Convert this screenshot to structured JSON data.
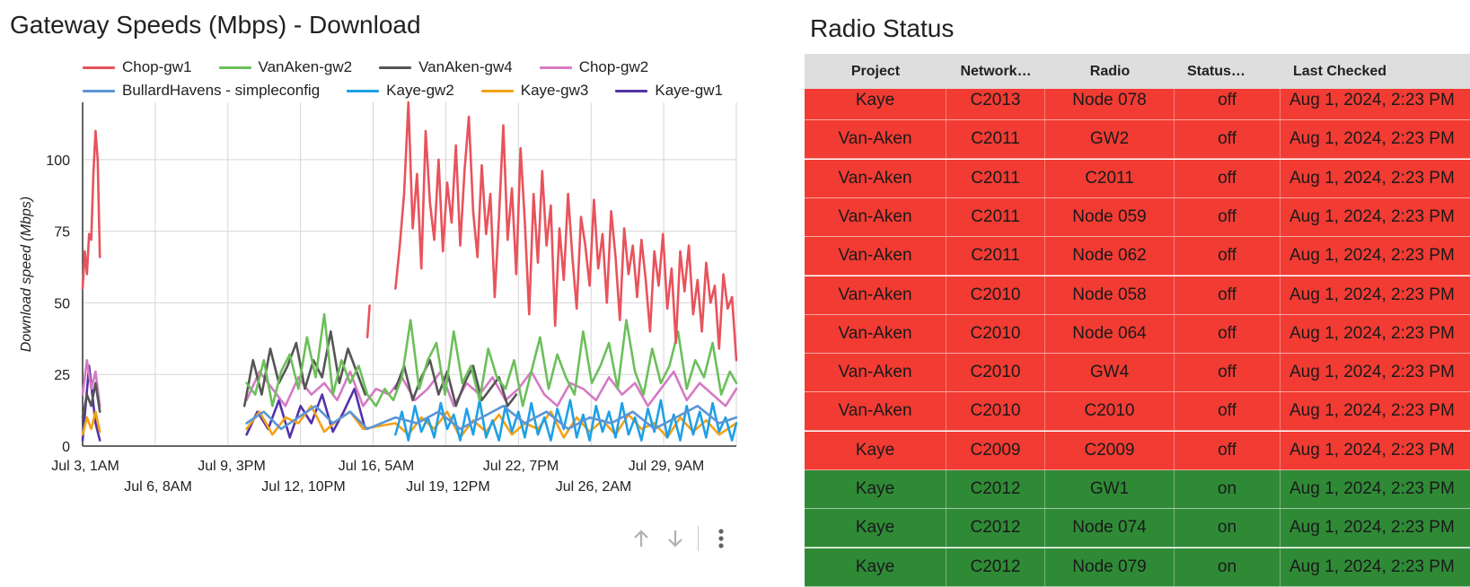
{
  "chart": {
    "title": "Gateway Speeds (Mbps) - Download",
    "legend": [
      {
        "name": "Chop-gw1",
        "color": "#e8535c"
      },
      {
        "name": "VanAken-gw2",
        "color": "#6cbf5a"
      },
      {
        "name": "VanAken-gw4",
        "color": "#555555"
      },
      {
        "name": "Chop-gw2",
        "color": "#d57ac5"
      },
      {
        "name": "BullardHavens - simpleconfig",
        "color": "#5b95d6"
      },
      {
        "name": "Kaye-gw2",
        "color": "#1ea0e6"
      },
      {
        "name": "Kaye-gw3",
        "color": "#f4a116"
      },
      {
        "name": "Kaye-gw1",
        "color": "#5432a8"
      }
    ],
    "controls": {
      "up_icon": "arrow-up-icon",
      "down_icon": "arrow-down-icon",
      "more_icon": "more-vert-icon"
    }
  },
  "chart_data": {
    "type": "line",
    "title": "Gateway Speeds (Mbps) - Download",
    "xlabel": "",
    "ylabel": "Download speed (Mbps)",
    "ylim": [
      0,
      120
    ],
    "yticks": [
      0,
      25,
      50,
      75,
      100
    ],
    "xticks_top": [
      "Jul 3, 1AM",
      "Jul 9, 3PM",
      "Jul 16, 5AM",
      "Jul 22, 7PM",
      "Jul 29, 9AM"
    ],
    "xticks_bottom": [
      "Jul 6, 8AM",
      "Jul 12, 10PM",
      "Jul 19, 12PM",
      "Jul 26, 2AM"
    ],
    "x_range_days": [
      0,
      30.3
    ],
    "grid": true,
    "legend_position": "top",
    "series": [
      {
        "name": "Chop-gw1",
        "color": "#e8535c",
        "segments": [
          {
            "x": [
              0.0,
              0.1,
              0.2,
              0.3,
              0.4,
              0.5,
              0.6,
              0.7,
              0.8
            ],
            "y": [
              55,
              68,
              60,
              74,
              72,
              95,
              110,
              100,
              66
            ]
          },
          {
            "x": [
              13.2,
              13.3
            ],
            "y": [
              38,
              49
            ]
          },
          {
            "x": [
              14.5,
              14.7,
              14.9,
              15.1,
              15.3,
              15.5,
              15.7,
              15.9,
              16.1,
              16.3,
              16.5,
              16.7,
              16.9,
              17.1,
              17.3,
              17.5,
              17.7,
              17.9,
              18.1,
              18.3,
              18.5,
              18.7,
              18.9,
              19.1,
              19.3,
              19.5,
              19.7,
              19.9,
              20.1,
              20.3,
              20.5,
              20.7,
              20.9,
              21.1,
              21.3,
              21.5,
              21.7,
              21.9,
              22.1,
              22.3,
              22.5,
              22.7,
              22.9,
              23.1,
              23.3,
              23.5,
              23.7,
              23.9,
              24.1,
              24.3,
              24.5,
              24.7,
              24.9,
              25.1,
              25.3,
              25.5,
              25.7,
              25.9,
              26.1,
              26.3,
              26.5,
              26.7,
              26.9,
              27.1,
              27.3,
              27.5,
              27.7,
              27.9,
              28.1,
              28.3,
              28.5,
              28.7,
              28.9,
              29.1,
              29.3,
              29.5,
              29.7,
              29.9,
              30.1,
              30.3
            ],
            "y": [
              55,
              70,
              88,
              120,
              76,
              95,
              62,
              110,
              85,
              72,
              100,
              68,
              92,
              78,
              105,
              70,
              96,
              115,
              82,
              66,
              98,
              74,
              88,
              52,
              80,
              112,
              72,
              90,
              60,
              104,
              78,
              46,
              88,
              64,
              96,
              70,
              84,
              42,
              76,
              58,
              88,
              66,
              48,
              80,
              70,
              56,
              86,
              62,
              74,
              50,
              82,
              66,
              44,
              76,
              60,
              70,
              52,
              72,
              58,
              40,
              68,
              56,
              74,
              48,
              62,
              36,
              68,
              54,
              70,
              46,
              58,
              40,
              64,
              50,
              56,
              34,
              60,
              48,
              52,
              30
            ]
          }
        ]
      },
      {
        "name": "VanAken-gw2",
        "color": "#6cbf5a",
        "segments": [
          {
            "x": [
              7.6,
              8.0,
              8.4,
              8.8,
              9.2,
              9.6,
              10.0,
              10.4,
              10.8,
              11.2,
              11.6,
              12.0,
              12.4,
              12.8,
              13.2,
              13.6,
              14.0,
              14.4,
              14.8,
              15.2,
              15.6,
              16.0,
              16.4,
              16.8,
              17.2,
              17.6,
              18.0,
              18.4,
              18.8,
              19.2,
              19.6,
              20.0,
              20.4,
              20.8,
              21.2,
              21.6,
              22.0,
              22.4,
              22.8,
              23.2,
              23.6,
              24.0,
              24.4,
              24.8,
              25.2,
              25.6,
              26.0,
              26.4,
              26.8,
              27.2,
              27.6,
              28.0,
              28.4,
              28.8,
              29.2,
              29.6,
              30.0,
              30.3
            ],
            "y": [
              22,
              18,
              30,
              14,
              26,
              32,
              20,
              38,
              24,
              46,
              18,
              30,
              22,
              28,
              18,
              14,
              20,
              16,
              24,
              44,
              20,
              30,
              36,
              18,
              40,
              22,
              28,
              16,
              34,
              24,
              20,
              30,
              14,
              26,
              38,
              20,
              32,
              24,
              18,
              40,
              22,
              28,
              36,
              20,
              44,
              26,
              18,
              34,
              22,
              28,
              40,
              20,
              30,
              24,
              36,
              18,
              26,
              22
            ]
          }
        ]
      },
      {
        "name": "VanAken-gw4",
        "color": "#555555",
        "segments": [
          {
            "x": [
              0.0,
              0.2,
              0.4,
              0.6,
              0.8
            ],
            "y": [
              10,
              18,
              14,
              22,
              12
            ]
          },
          {
            "x": [
              7.5,
              7.9,
              8.3,
              8.7,
              9.1,
              9.5,
              9.9,
              10.3,
              10.7,
              11.1,
              11.5,
              11.9,
              12.3,
              12.7,
              13.1
            ],
            "y": [
              14,
              30,
              18,
              34,
              22,
              28,
              36,
              20,
              30,
              24,
              40,
              22,
              34,
              26,
              18
            ]
          },
          {
            "x": [
              14.5,
              14.9,
              15.3,
              15.7,
              16.1,
              16.5,
              16.9,
              17.3,
              17.7,
              18.1,
              18.5,
              18.9,
              19.3,
              19.7,
              20.1
            ],
            "y": [
              20,
              28,
              16,
              24,
              30,
              18,
              26,
              14,
              22,
              28,
              16,
              20,
              24,
              14,
              18
            ]
          }
        ]
      },
      {
        "name": "Chop-gw2",
        "color": "#d57ac5",
        "segments": [
          {
            "x": [
              0.0,
              0.2,
              0.4,
              0.6,
              0.8
            ],
            "y": [
              18,
              30,
              20,
              26,
              14
            ]
          },
          {
            "x": [
              7.6,
              8.2,
              8.8,
              9.4,
              10.0,
              10.6,
              11.2,
              11.8,
              12.4,
              13.0,
              13.6,
              14.2,
              14.8,
              15.4,
              16.0,
              16.6,
              17.2,
              17.8,
              18.4,
              19.0,
              19.6,
              20.2,
              20.8,
              21.4,
              22.0,
              22.6,
              23.2,
              23.8,
              24.4,
              25.0,
              25.6,
              26.2,
              26.8,
              27.4,
              28.0,
              28.6,
              29.2,
              29.8,
              30.3
            ],
            "y": [
              16,
              26,
              20,
              14,
              24,
              18,
              22,
              16,
              26,
              14,
              20,
              18,
              24,
              16,
              20,
              26,
              14,
              22,
              18,
              24,
              16,
              20,
              26,
              18,
              14,
              22,
              20,
              16,
              24,
              18,
              22,
              14,
              20,
              26,
              16,
              22,
              18,
              14,
              20
            ]
          }
        ]
      },
      {
        "name": "BullardHavens - simpleconfig",
        "color": "#5b95d6",
        "segments": [
          {
            "x": [
              7.6,
              8.4,
              9.2,
              10.0,
              10.8,
              11.6,
              12.4,
              13.2,
              14.5,
              15.5,
              16.5,
              17.5,
              18.5,
              19.5,
              20.5,
              21.5,
              22.5,
              23.5,
              24.5,
              25.5,
              26.5,
              27.5,
              28.5,
              29.5,
              30.3
            ],
            "y": [
              8,
              12,
              6,
              10,
              14,
              8,
              12,
              6,
              10,
              8,
              12,
              6,
              10,
              14,
              8,
              12,
              6,
              10,
              8,
              12,
              6,
              10,
              14,
              8,
              10
            ]
          }
        ]
      },
      {
        "name": "Kaye-gw2",
        "color": "#1ea0e6",
        "segments": [
          {
            "x": [
              14.5,
              14.8,
              15.1,
              15.4,
              15.7,
              16.0,
              16.3,
              16.6,
              16.9,
              17.2,
              17.5,
              17.8,
              18.1,
              18.4,
              18.7,
              19.0,
              19.3,
              19.6,
              19.9,
              20.2,
              20.5,
              20.8,
              21.1,
              21.4,
              21.7,
              22.0,
              22.3,
              22.6,
              22.9,
              23.2,
              23.5,
              23.8,
              24.1,
              24.4,
              24.7,
              25.0,
              25.3,
              25.6,
              25.9,
              26.2,
              26.5,
              26.8,
              27.1,
              27.4,
              27.7,
              28.0,
              28.3,
              28.6,
              28.9,
              29.2,
              29.5,
              29.8,
              30.1,
              30.3
            ],
            "y": [
              4,
              12,
              2,
              14,
              5,
              10,
              3,
              15,
              6,
              11,
              2,
              13,
              4,
              16,
              3,
              9,
              2,
              14,
              5,
              12,
              3,
              15,
              4,
              10,
              2,
              13,
              6,
              16,
              3,
              11,
              2,
              14,
              5,
              12,
              3,
              15,
              4,
              10,
              2,
              13,
              5,
              16,
              3,
              11,
              2,
              14,
              4,
              12,
              3,
              15,
              5,
              10,
              2,
              8
            ]
          }
        ]
      },
      {
        "name": "Kaye-gw3",
        "color": "#f4a116",
        "segments": [
          {
            "x": [
              0.0,
              0.2,
              0.4,
              0.6,
              0.8
            ],
            "y": [
              4,
              10,
              6,
              12,
              5
            ]
          },
          {
            "x": [
              7.6,
              8.2,
              8.8,
              9.4,
              10.0,
              10.6,
              11.2,
              11.8,
              12.4,
              13.0,
              14.5,
              15.1,
              15.7,
              16.3,
              16.9,
              17.5,
              18.1,
              18.7,
              19.3,
              19.9,
              20.5,
              21.1,
              21.7,
              22.3,
              22.9,
              23.5,
              24.1,
              24.7,
              25.3,
              25.9,
              26.5,
              27.1,
              27.7,
              28.3,
              28.9,
              29.5,
              30.3
            ],
            "y": [
              6,
              12,
              4,
              10,
              8,
              14,
              5,
              9,
              12,
              6,
              8,
              4,
              10,
              6,
              12,
              3,
              9,
              5,
              11,
              4,
              8,
              6,
              12,
              3,
              10,
              5,
              9,
              4,
              11,
              6,
              8,
              3,
              10,
              5,
              9,
              4,
              8
            ]
          }
        ]
      },
      {
        "name": "Kaye-gw1",
        "color": "#5432a8",
        "segments": [
          {
            "x": [
              0.0,
              0.3,
              0.6,
              0.8
            ],
            "y": [
              2,
              28,
              8,
              2
            ]
          },
          {
            "x": [
              7.6,
              8.1,
              8.6,
              9.1,
              9.6,
              10.1,
              10.6,
              11.1,
              11.6,
              12.1,
              12.6,
              13.1
            ],
            "y": [
              4,
              12,
              6,
              16,
              3,
              14,
              8,
              18,
              5,
              12,
              20,
              6
            ]
          }
        ]
      }
    ]
  },
  "table": {
    "title": "Radio Status",
    "headers": [
      "Project",
      "Network…",
      "Radio",
      "Status…",
      "Last Checked"
    ],
    "off_color": "#f23b33",
    "on_color": "#2f8a36",
    "rows": [
      {
        "project": "Kaye",
        "network": "C2013",
        "radio": "Node 078",
        "status": "off",
        "checked": "Aug 1, 2024, 2:23 PM"
      },
      {
        "project": "Van-Aken",
        "network": "C2011",
        "radio": "GW2",
        "status": "off",
        "checked": "Aug 1, 2024, 2:23 PM"
      },
      {
        "project": "Van-Aken",
        "network": "C2011",
        "radio": "C2011",
        "status": "off",
        "checked": "Aug 1, 2024, 2:23 PM"
      },
      {
        "project": "Van-Aken",
        "network": "C2011",
        "radio": "Node 059",
        "status": "off",
        "checked": "Aug 1, 2024, 2:23 PM"
      },
      {
        "project": "Van-Aken",
        "network": "C2011",
        "radio": "Node 062",
        "status": "off",
        "checked": "Aug 1, 2024, 2:23 PM"
      },
      {
        "project": "Van-Aken",
        "network": "C2010",
        "radio": "Node 058",
        "status": "off",
        "checked": "Aug 1, 2024, 2:23 PM"
      },
      {
        "project": "Van-Aken",
        "network": "C2010",
        "radio": "Node 064",
        "status": "off",
        "checked": "Aug 1, 2024, 2:23 PM"
      },
      {
        "project": "Van-Aken",
        "network": "C2010",
        "radio": "GW4",
        "status": "off",
        "checked": "Aug 1, 2024, 2:23 PM"
      },
      {
        "project": "Van-Aken",
        "network": "C2010",
        "radio": "C2010",
        "status": "off",
        "checked": "Aug 1, 2024, 2:23 PM"
      },
      {
        "project": "Kaye",
        "network": "C2009",
        "radio": "C2009",
        "status": "off",
        "checked": "Aug 1, 2024, 2:23 PM"
      },
      {
        "project": "Kaye",
        "network": "C2012",
        "radio": "GW1",
        "status": "on",
        "checked": "Aug 1, 2024, 2:23 PM"
      },
      {
        "project": "Kaye",
        "network": "C2012",
        "radio": "Node 074",
        "status": "on",
        "checked": "Aug 1, 2024, 2:23 PM"
      },
      {
        "project": "Kaye",
        "network": "C2012",
        "radio": "Node 079",
        "status": "on",
        "checked": "Aug 1, 2024, 2:23 PM"
      }
    ]
  }
}
